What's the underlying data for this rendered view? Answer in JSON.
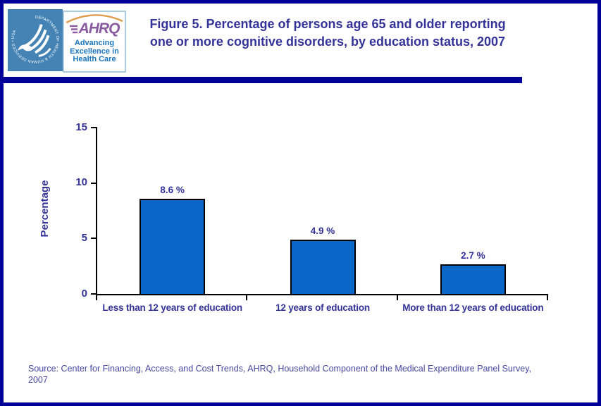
{
  "header": {
    "logo": {
      "hhs_circle_text": "DEPARTMENT OF HEALTH & HUMAN SERVICES • USA",
      "ahrq_acronym": "AHRQ",
      "ahrq_tagline_lines": [
        "Advancing",
        "Excellence in",
        "Health Care"
      ]
    },
    "title_lines": [
      "Figure 5. Percentage of persons age 65 and older reporting",
      "one or more cognitive disorders, by education status, 2007"
    ]
  },
  "chart_data": {
    "type": "bar",
    "title": "Figure 5. Percentage of persons age 65 and older reporting one or more cognitive disorders, by education status, 2007",
    "categories": [
      "Less than 12 years of education",
      "12 years of education",
      "More than 12 years of education"
    ],
    "values": [
      8.6,
      4.9,
      2.7
    ],
    "bar_labels": [
      "8.6 %",
      "4.9 %",
      "2.7 %"
    ],
    "xlabel": "",
    "ylabel": "Percentage",
    "ylim": [
      0,
      15
    ],
    "yticks": [
      0,
      5,
      10,
      15
    ],
    "grid": false,
    "legend": "none",
    "bar_color": "#0a67c7",
    "bar_border_color": "#000000"
  },
  "footer": {
    "source_lines": [
      "Source: Center for Financing, Access, and Cost Trends, AHRQ, Household Component of the Medical Expenditure Panel Survey,",
      "2007"
    ]
  },
  "colors": {
    "frame_border": "#000099",
    "divider": "#000099",
    "title_text": "#333399",
    "axis_text": "#333399",
    "source_text": "#4747a1",
    "hhs_blue": "#4483b3",
    "ahrq_purple": "#8a5aa0",
    "ahrq_tagline_blue": "#1b75bb",
    "ahrq_arc_orange": "#dd9e4e",
    "bar_fill": "#0a67c7"
  }
}
